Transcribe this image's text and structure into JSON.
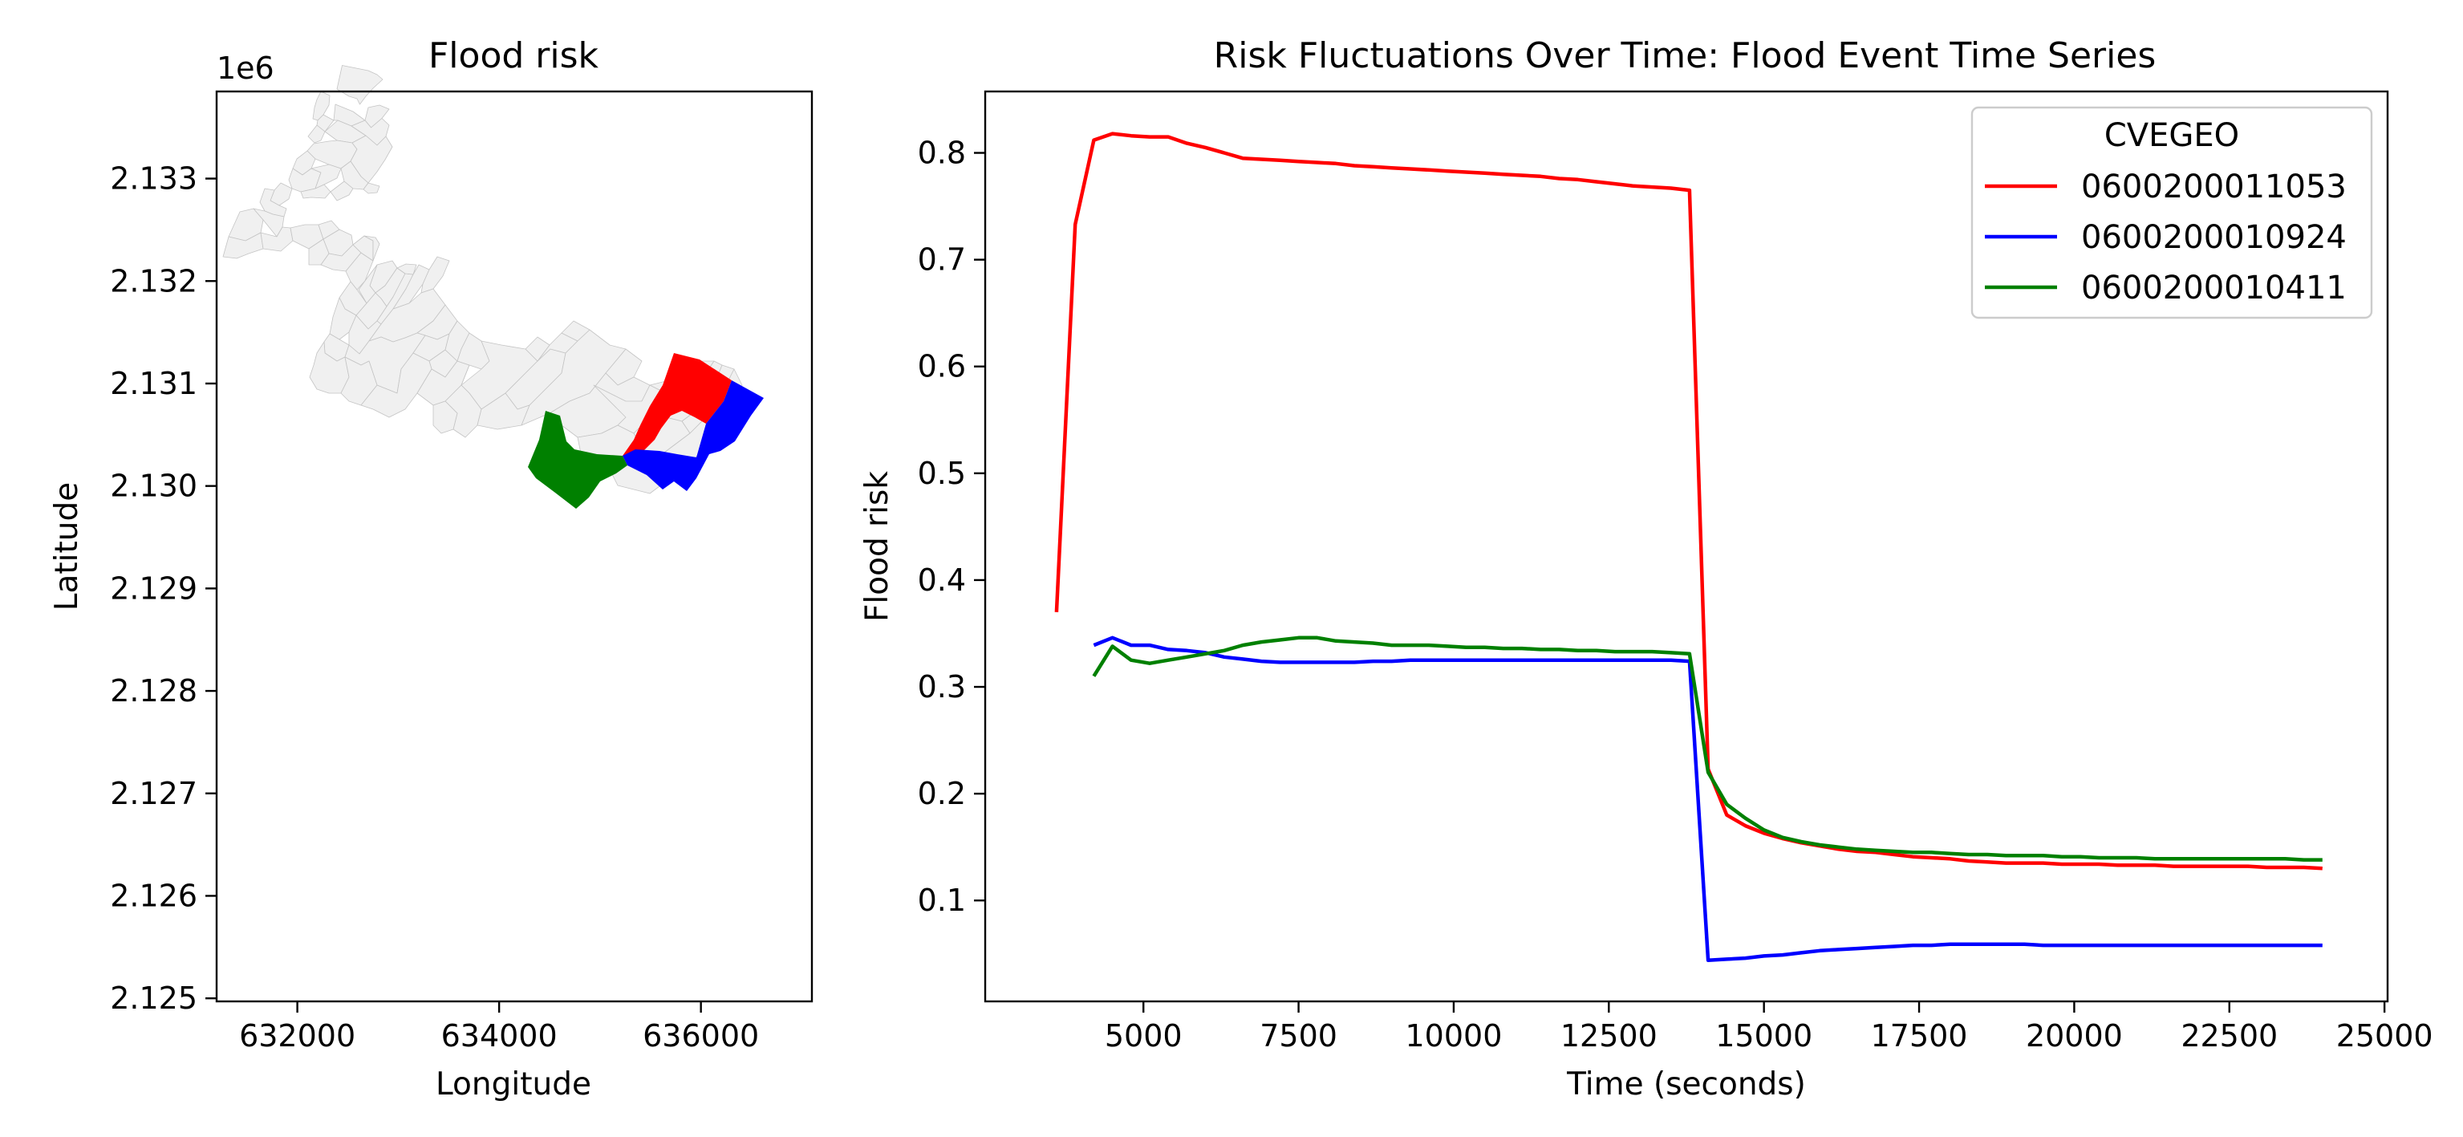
{
  "chart_data": [
    {
      "type": "map",
      "title": "Flood risk",
      "xlabel": "Longitude",
      "ylabel": "Latitude",
      "y_offset_label": "1e6",
      "xlim": [
        631200,
        637100
      ],
      "ylim": [
        2.12497,
        2.13385
      ],
      "xticks": [
        632000,
        634000,
        636000
      ],
      "xtick_labels": [
        "632000",
        "634000",
        "636000"
      ],
      "yticks": [
        2.125,
        2.126,
        2.127,
        2.128,
        2.129,
        2.13,
        2.131,
        2.132,
        2.133
      ],
      "ytick_labels": [
        "2.125",
        "2.126",
        "2.127",
        "2.128",
        "2.129",
        "2.130",
        "2.131",
        "2.132",
        "2.133"
      ],
      "highlighted_regions": [
        {
          "region": "0600200011053",
          "color": "#ff0000"
        },
        {
          "region": "0600200010924",
          "color": "#0000ff"
        },
        {
          "region": "0600200010411",
          "color": "#008000"
        }
      ],
      "background_color": "#f0f0f0"
    },
    {
      "type": "line",
      "title": "Risk Fluctuations Over Time: Flood Event Time Series",
      "xlabel": "Time (seconds)",
      "ylabel": "Flood risk",
      "xlim": [
        2450,
        25050
      ],
      "ylim": [
        0.0055,
        0.8575
      ],
      "xticks": [
        5000,
        7500,
        10000,
        12500,
        15000,
        17500,
        20000,
        22500,
        25000
      ],
      "xtick_labels": [
        "5000",
        "7500",
        "10000",
        "12500",
        "15000",
        "17500",
        "20000",
        "22500",
        "25000"
      ],
      "yticks": [
        0.1,
        0.2,
        0.3,
        0.4,
        0.5,
        0.6,
        0.7,
        0.8
      ],
      "ytick_labels": [
        "0.1",
        "0.2",
        "0.3",
        "0.4",
        "0.5",
        "0.6",
        "0.7",
        "0.8"
      ],
      "legend": {
        "title": "CVEGEO",
        "placement": "upper-right"
      },
      "series": [
        {
          "name": "0600200011053",
          "color": "#ff0000",
          "x": [
            3600,
            3900,
            4200,
            4500,
            4800,
            5100,
            5400,
            5700,
            6000,
            6300,
            6600,
            6900,
            7200,
            7500,
            7800,
            8100,
            8400,
            8700,
            9000,
            9300,
            9600,
            9900,
            10200,
            10500,
            10800,
            11100,
            11400,
            11700,
            12000,
            12300,
            12600,
            12900,
            13200,
            13500,
            13800,
            14100,
            14400,
            14700,
            15000,
            15300,
            15600,
            15900,
            16200,
            16500,
            16800,
            17100,
            17400,
            17700,
            18000,
            18300,
            18600,
            18900,
            19200,
            19500,
            19800,
            20100,
            20400,
            20700,
            21000,
            21300,
            21600,
            21900,
            22200,
            22500,
            22800,
            23100,
            23400,
            23700,
            24000
          ],
          "values": [
            0.37,
            0.733,
            0.812,
            0.818,
            0.816,
            0.815,
            0.815,
            0.809,
            0.805,
            0.8,
            0.795,
            0.794,
            0.793,
            0.792,
            0.791,
            0.79,
            0.788,
            0.787,
            0.786,
            0.785,
            0.784,
            0.783,
            0.782,
            0.781,
            0.78,
            0.779,
            0.778,
            0.776,
            0.775,
            0.773,
            0.771,
            0.769,
            0.768,
            0.767,
            0.765,
            0.223,
            0.18,
            0.17,
            0.163,
            0.158,
            0.154,
            0.151,
            0.148,
            0.146,
            0.145,
            0.143,
            0.141,
            0.14,
            0.139,
            0.137,
            0.136,
            0.135,
            0.135,
            0.135,
            0.134,
            0.134,
            0.134,
            0.133,
            0.133,
            0.133,
            0.132,
            0.132,
            0.132,
            0.132,
            0.132,
            0.131,
            0.131,
            0.131,
            0.13
          ]
        },
        {
          "name": "0600200010924",
          "color": "#0000ff",
          "x": [
            4200,
            4500,
            4800,
            5100,
            5400,
            5700,
            6000,
            6300,
            6600,
            6900,
            7200,
            7500,
            7800,
            8100,
            8400,
            8700,
            9000,
            9300,
            9600,
            9900,
            10200,
            10500,
            10800,
            11100,
            11400,
            11700,
            12000,
            12300,
            12600,
            12900,
            13200,
            13500,
            13800,
            14100,
            14400,
            14700,
            15000,
            15300,
            15600,
            15900,
            16200,
            16500,
            16800,
            17100,
            17400,
            17700,
            18000,
            18300,
            18600,
            18900,
            19200,
            19500,
            19800,
            20100,
            20400,
            20700,
            21000,
            21300,
            21600,
            21900,
            22200,
            22500,
            22800,
            23100,
            23400,
            23700,
            24000
          ],
          "values": [
            0.339,
            0.346,
            0.339,
            0.339,
            0.335,
            0.334,
            0.332,
            0.328,
            0.326,
            0.324,
            0.323,
            0.323,
            0.323,
            0.323,
            0.323,
            0.324,
            0.324,
            0.325,
            0.325,
            0.325,
            0.325,
            0.325,
            0.325,
            0.325,
            0.325,
            0.325,
            0.325,
            0.325,
            0.325,
            0.325,
            0.325,
            0.325,
            0.324,
            0.044,
            0.045,
            0.046,
            0.048,
            0.049,
            0.051,
            0.053,
            0.054,
            0.055,
            0.056,
            0.057,
            0.058,
            0.058,
            0.059,
            0.059,
            0.059,
            0.059,
            0.059,
            0.058,
            0.058,
            0.058,
            0.058,
            0.058,
            0.058,
            0.058,
            0.058,
            0.058,
            0.058,
            0.058,
            0.058,
            0.058,
            0.058,
            0.058,
            0.058
          ]
        },
        {
          "name": "0600200010411",
          "color": "#008000",
          "x": [
            4200,
            4500,
            4800,
            5100,
            5400,
            5700,
            6000,
            6300,
            6600,
            6900,
            7200,
            7500,
            7800,
            8100,
            8400,
            8700,
            9000,
            9300,
            9600,
            9900,
            10200,
            10500,
            10800,
            11100,
            11400,
            11700,
            12000,
            12300,
            12600,
            12900,
            13200,
            13500,
            13800,
            14100,
            14400,
            14700,
            15000,
            15300,
            15600,
            15900,
            16200,
            16500,
            16800,
            17100,
            17400,
            17700,
            18000,
            18300,
            18600,
            18900,
            19200,
            19500,
            19800,
            20100,
            20400,
            20700,
            21000,
            21300,
            21600,
            21900,
            22200,
            22500,
            22800,
            23100,
            23400,
            23700,
            24000
          ],
          "values": [
            0.31,
            0.338,
            0.325,
            0.322,
            0.325,
            0.328,
            0.331,
            0.334,
            0.339,
            0.342,
            0.344,
            0.346,
            0.346,
            0.343,
            0.342,
            0.341,
            0.339,
            0.339,
            0.339,
            0.338,
            0.337,
            0.337,
            0.336,
            0.336,
            0.335,
            0.335,
            0.334,
            0.334,
            0.333,
            0.333,
            0.333,
            0.332,
            0.331,
            0.22,
            0.19,
            0.177,
            0.166,
            0.159,
            0.155,
            0.152,
            0.15,
            0.148,
            0.147,
            0.146,
            0.145,
            0.145,
            0.144,
            0.143,
            0.143,
            0.142,
            0.142,
            0.142,
            0.141,
            0.141,
            0.14,
            0.14,
            0.14,
            0.139,
            0.139,
            0.139,
            0.139,
            0.139,
            0.139,
            0.139,
            0.139,
            0.138,
            0.138
          ]
        }
      ]
    }
  ]
}
